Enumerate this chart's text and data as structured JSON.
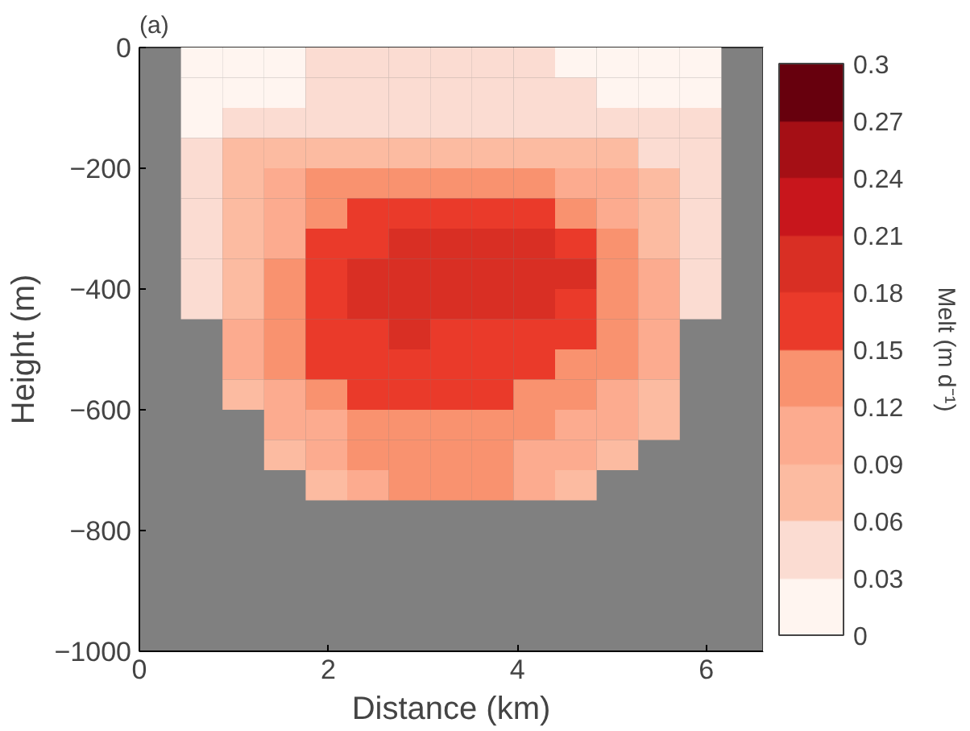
{
  "chart_data": {
    "type": "heatmap",
    "xlabel": "Distance (km)",
    "ylabel": "Height (m)",
    "clabel": "Melt (m d⁻¹)",
    "annotations": [
      "(a)"
    ],
    "x": [
      0.22,
      0.66,
      1.1,
      1.54,
      1.98,
      2.42,
      2.86,
      3.3,
      3.74,
      4.18,
      4.62,
      5.06,
      5.5,
      5.94,
      6.38
    ],
    "y": [
      -25,
      -75,
      -125,
      -175,
      -225,
      -275,
      -325,
      -375,
      -425,
      -475,
      -525,
      -575,
      -625,
      -675,
      -725
    ],
    "cells": [
      [
        null,
        0.015,
        0.015,
        0.015,
        0.045,
        0.045,
        0.045,
        0.045,
        0.045,
        0.045,
        0.015,
        0.015,
        0.015,
        0.015,
        null
      ],
      [
        null,
        0.015,
        0.015,
        0.015,
        0.045,
        0.045,
        0.045,
        0.045,
        0.045,
        0.045,
        0.045,
        0.015,
        0.015,
        0.015,
        null
      ],
      [
        null,
        0.015,
        0.045,
        0.045,
        0.045,
        0.045,
        0.045,
        0.045,
        0.045,
        0.045,
        0.045,
        0.045,
        0.045,
        0.045,
        null
      ],
      [
        null,
        0.045,
        0.075,
        0.075,
        0.075,
        0.075,
        0.075,
        0.075,
        0.075,
        0.075,
        0.075,
        0.075,
        0.045,
        0.045,
        null
      ],
      [
        null,
        0.045,
        0.075,
        0.105,
        0.135,
        0.135,
        0.135,
        0.135,
        0.135,
        0.135,
        0.105,
        0.105,
        0.075,
        0.045,
        null
      ],
      [
        null,
        0.045,
        0.075,
        0.105,
        0.135,
        0.165,
        0.165,
        0.165,
        0.165,
        0.165,
        0.135,
        0.105,
        0.075,
        0.045,
        null
      ],
      [
        null,
        0.045,
        0.075,
        0.105,
        0.165,
        0.165,
        0.195,
        0.195,
        0.195,
        0.195,
        0.165,
        0.135,
        0.075,
        0.045,
        null
      ],
      [
        null,
        0.045,
        0.075,
        0.135,
        0.165,
        0.195,
        0.195,
        0.195,
        0.195,
        0.195,
        0.195,
        0.135,
        0.105,
        0.045,
        null
      ],
      [
        null,
        0.045,
        0.075,
        0.135,
        0.165,
        0.195,
        0.195,
        0.195,
        0.195,
        0.195,
        0.165,
        0.135,
        0.105,
        0.045,
        null
      ],
      [
        null,
        null,
        0.105,
        0.135,
        0.165,
        0.165,
        0.195,
        0.165,
        0.165,
        0.165,
        0.165,
        0.135,
        0.105,
        null,
        null
      ],
      [
        null,
        null,
        0.105,
        0.135,
        0.165,
        0.165,
        0.165,
        0.165,
        0.165,
        0.165,
        0.135,
        0.135,
        0.105,
        null,
        null
      ],
      [
        null,
        null,
        0.075,
        0.105,
        0.135,
        0.165,
        0.165,
        0.165,
        0.165,
        0.135,
        0.135,
        0.105,
        0.075,
        null,
        null
      ],
      [
        null,
        null,
        null,
        0.105,
        0.105,
        0.135,
        0.135,
        0.135,
        0.135,
        0.135,
        0.105,
        0.105,
        0.075,
        null,
        null
      ],
      [
        null,
        null,
        null,
        0.075,
        0.105,
        0.135,
        0.135,
        0.135,
        0.135,
        0.105,
        0.105,
        0.075,
        null,
        null,
        null
      ],
      [
        null,
        null,
        null,
        null,
        0.075,
        0.105,
        0.135,
        0.135,
        0.135,
        0.105,
        0.075,
        null,
        null,
        null,
        null
      ]
    ],
    "colors": [
      "#fff5f0",
      "#fbdcd2",
      "#fcbba1",
      "#fcab8f",
      "#f9926f",
      "#ea3a2a",
      "#d92f24",
      "#c8161c",
      "#a50f15",
      "#67000d"
    ],
    "clim": [
      0,
      0.3
    ],
    "cticks": [
      0,
      0.03,
      0.06,
      0.09,
      0.12,
      0.15,
      0.18,
      0.21,
      0.24,
      0.27,
      0.3
    ],
    "xlim": [
      0,
      6.6
    ],
    "ylim": [
      -1000,
      0
    ],
    "xticks": [
      0,
      2,
      4,
      6
    ],
    "yticks": [
      -1000,
      -800,
      -600,
      -400,
      -200,
      0
    ],
    "grid": false
  }
}
